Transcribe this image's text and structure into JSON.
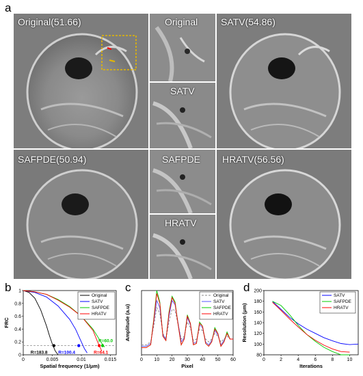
{
  "panel_letters": {
    "a": "a",
    "b": "b",
    "c": "c",
    "d": "d"
  },
  "images": {
    "original": "Original(51.66)",
    "zoom_original": "Original",
    "satv": "SATV(54.86)",
    "zoom_satv": "SATV",
    "safpde": "SAFPDE(50.94)",
    "zoom_safpde": "SAFPDE",
    "hratv": "HRATV(56.56)",
    "zoom_hratv": "HRATV"
  },
  "chart_data": [
    {
      "id": "b",
      "type": "line",
      "xlabel": "Spatial frequency (1/μm)",
      "ylabel": "FRC",
      "xlim": [
        0,
        0.016
      ],
      "ylim": [
        0,
        1
      ],
      "xticks": [
        "0",
        "0.005",
        "0.01",
        "0.015"
      ],
      "yticks": [
        "0",
        "0.2",
        "0.4",
        "0.6",
        "0.8",
        "1"
      ],
      "threshold": 0.143,
      "legend": [
        "Original",
        "SATV",
        "SAFPDE",
        "HRATV"
      ],
      "series": [
        {
          "name": "Original",
          "color": "#000000",
          "x": [
            0,
            0.001,
            0.002,
            0.003,
            0.004,
            0.0045,
            0.005,
            0.0055,
            0.006
          ],
          "y": [
            1,
            0.97,
            0.88,
            0.7,
            0.45,
            0.3,
            0.17,
            0.06,
            0.0
          ]
        },
        {
          "name": "SATV",
          "color": "#0000ff",
          "x": [
            0,
            0.002,
            0.004,
            0.006,
            0.008,
            0.009,
            0.01,
            0.0105,
            0.011
          ],
          "y": [
            1,
            0.97,
            0.9,
            0.76,
            0.55,
            0.4,
            0.2,
            0.1,
            0.03
          ]
        },
        {
          "name": "SAFPDE",
          "color": "#00c800",
          "x": [
            0,
            0.002,
            0.004,
            0.006,
            0.008,
            0.01,
            0.012,
            0.0135,
            0.014
          ],
          "y": [
            1,
            0.98,
            0.94,
            0.86,
            0.75,
            0.6,
            0.4,
            0.18,
            0.12
          ]
        },
        {
          "name": "HRATV",
          "color": "#ff0000",
          "x": [
            0,
            0.002,
            0.004,
            0.006,
            0.008,
            0.01,
            0.012,
            0.0128,
            0.0135
          ],
          "y": [
            1,
            0.98,
            0.94,
            0.85,
            0.74,
            0.6,
            0.38,
            0.2,
            0.06
          ]
        }
      ],
      "markers": [
        {
          "name": "Original",
          "x": 0.00527,
          "label": "R=183.8",
          "color": "#000000"
        },
        {
          "name": "SATV",
          "x": 0.00956,
          "label": "R=100.4",
          "color": "#0000ff"
        },
        {
          "name": "SAFPDE",
          "x": 0.01365,
          "label": "R=60.0",
          "color": "#00c800"
        },
        {
          "name": "HRATV",
          "x": 0.01307,
          "label": "R=64.1",
          "color": "#ff0000"
        }
      ]
    },
    {
      "id": "c",
      "type": "line",
      "xlabel": "Pixel",
      "ylabel": "Amplitude (a.u)",
      "xlim": [
        0,
        60
      ],
      "ylim": [
        0.55,
        1.0
      ],
      "xticks": [
        "0",
        "10",
        "20",
        "30",
        "40",
        "50",
        "60"
      ],
      "legend": [
        "Original",
        "SATV",
        "SAFPDE",
        "HRATV"
      ],
      "series": [
        {
          "name": "Original",
          "color": "#888888",
          "dashed": true,
          "x": [
            0,
            3,
            6,
            8,
            10,
            12,
            14,
            16,
            18,
            20,
            22,
            24,
            26,
            28,
            30,
            32,
            34,
            36,
            38,
            40,
            42,
            44,
            46,
            48,
            50,
            52,
            54,
            56,
            58,
            60
          ],
          "y": [
            0.62,
            0.62,
            0.64,
            0.75,
            0.88,
            0.84,
            0.7,
            0.66,
            0.78,
            0.87,
            0.86,
            0.76,
            0.66,
            0.68,
            0.78,
            0.74,
            0.65,
            0.66,
            0.73,
            0.72,
            0.66,
            0.64,
            0.66,
            0.7,
            0.68,
            0.64,
            0.66,
            0.68,
            0.66,
            0.66
          ]
        },
        {
          "name": "SATV",
          "color": "#5555ff",
          "dashed": false,
          "x": [
            0,
            3,
            6,
            8,
            10,
            12,
            14,
            16,
            18,
            20,
            22,
            24,
            26,
            28,
            30,
            32,
            34,
            36,
            38,
            40,
            42,
            44,
            46,
            48,
            50,
            52,
            54,
            56,
            58,
            60
          ],
          "y": [
            0.61,
            0.61,
            0.63,
            0.78,
            0.93,
            0.88,
            0.69,
            0.66,
            0.82,
            0.93,
            0.9,
            0.77,
            0.64,
            0.67,
            0.81,
            0.76,
            0.63,
            0.64,
            0.76,
            0.74,
            0.64,
            0.62,
            0.65,
            0.72,
            0.69,
            0.62,
            0.65,
            0.7,
            0.66,
            0.66
          ]
        },
        {
          "name": "SAFPDE",
          "color": "#00cc00",
          "dashed": false,
          "x": [
            0,
            3,
            6,
            8,
            10,
            12,
            14,
            16,
            18,
            20,
            22,
            24,
            26,
            28,
            30,
            32,
            34,
            36,
            38,
            40,
            42,
            44,
            46,
            48,
            50,
            52,
            54,
            56,
            58,
            60
          ],
          "y": [
            0.6,
            0.6,
            0.62,
            0.8,
            1.0,
            0.92,
            0.68,
            0.65,
            0.85,
            0.96,
            0.92,
            0.76,
            0.62,
            0.66,
            0.83,
            0.77,
            0.62,
            0.63,
            0.78,
            0.75,
            0.63,
            0.61,
            0.64,
            0.74,
            0.7,
            0.61,
            0.64,
            0.71,
            0.66,
            0.66
          ]
        },
        {
          "name": "HRATV",
          "color": "#ff0000",
          "dashed": false,
          "x": [
            0,
            3,
            6,
            8,
            10,
            12,
            14,
            16,
            18,
            20,
            22,
            24,
            26,
            28,
            30,
            32,
            34,
            36,
            38,
            40,
            42,
            44,
            46,
            48,
            50,
            52,
            54,
            56,
            58,
            60
          ],
          "y": [
            0.6,
            0.6,
            0.62,
            0.79,
            0.98,
            0.91,
            0.68,
            0.65,
            0.84,
            0.95,
            0.91,
            0.76,
            0.62,
            0.66,
            0.82,
            0.77,
            0.62,
            0.63,
            0.77,
            0.75,
            0.63,
            0.61,
            0.64,
            0.73,
            0.7,
            0.61,
            0.64,
            0.7,
            0.66,
            0.66
          ]
        }
      ]
    },
    {
      "id": "d",
      "type": "line",
      "xlabel": "Iterations",
      "ylabel": "Resolution (μm)",
      "xlim": [
        0,
        11
      ],
      "ylim": [
        80,
        200
      ],
      "xticks": [
        "0",
        "2",
        "4",
        "6",
        "8",
        "10"
      ],
      "yticks": [
        "80",
        "100",
        "120",
        "140",
        "160",
        "180",
        "200"
      ],
      "legend": [
        "SATV",
        "SAFPDE",
        "HRATV"
      ],
      "series": [
        {
          "name": "SATV",
          "color": "#0000ff",
          "x": [
            1,
            2,
            3,
            4,
            5,
            6,
            7,
            8,
            9,
            10,
            11
          ],
          "y": [
            180,
            165,
            150,
            138,
            128,
            120,
            112,
            106,
            101,
            99,
            100
          ]
        },
        {
          "name": "SAFPDE",
          "color": "#00cc00",
          "x": [
            1,
            2,
            3,
            4,
            5,
            6,
            7,
            8,
            9,
            10
          ],
          "y": [
            180,
            172,
            155,
            135,
            118,
            105,
            94,
            86,
            80,
            80
          ]
        },
        {
          "name": "HRATV",
          "color": "#ff0000",
          "x": [
            1,
            2,
            3,
            4,
            5,
            6,
            7,
            8,
            9,
            10
          ],
          "y": [
            178,
            163,
            147,
            132,
            118,
            107,
            98,
            91,
            86,
            85
          ]
        }
      ]
    }
  ]
}
